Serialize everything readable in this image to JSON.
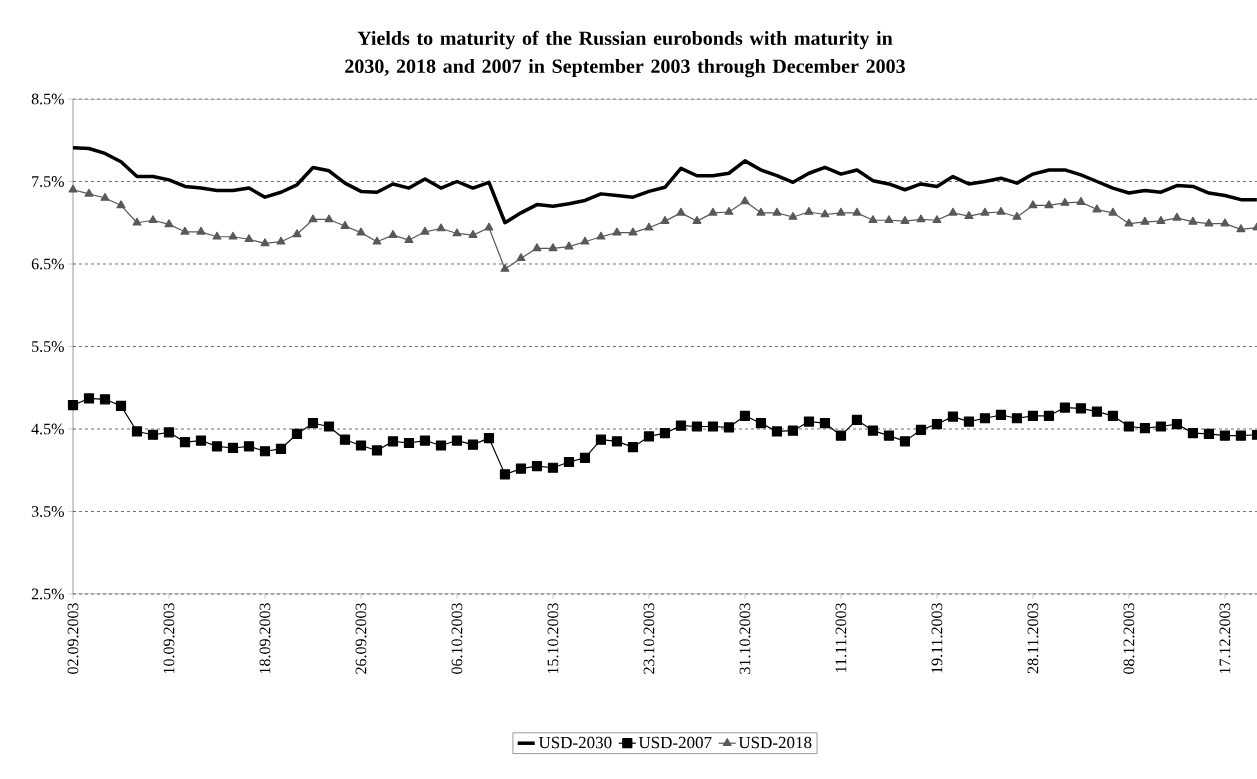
{
  "chart_data": {
    "type": "line",
    "title": "Yields to maturity of the Russian eurobonds with maturity in 2030, 2018 and 2007 in September 2003 through December 2003",
    "categories": [
      "02.09.2003",
      null,
      null,
      null,
      null,
      null,
      "10.09.2003",
      null,
      null,
      null,
      null,
      null,
      "18.09.2003",
      null,
      null,
      null,
      null,
      null,
      "26.09.2003",
      null,
      null,
      null,
      null,
      null,
      "06.10.2003",
      null,
      null,
      null,
      null,
      null,
      "15.10.2003",
      null,
      null,
      null,
      null,
      null,
      "23.10.2003",
      null,
      null,
      null,
      null,
      null,
      "31.10.2003",
      null,
      null,
      null,
      null,
      null,
      "11.11.2003",
      null,
      null,
      null,
      null,
      null,
      "19.11.2003",
      null,
      null,
      null,
      null,
      null,
      "28.11.2003",
      null,
      null,
      null,
      null,
      null,
      "08.12.2003",
      null,
      null,
      null,
      null,
      null,
      "17.12.2003",
      null,
      null
    ],
    "series": [
      {
        "name": "USD-2030",
        "color": "#000000",
        "marker": "none",
        "values": [
          7.91,
          7.9,
          7.84,
          7.74,
          7.56,
          7.56,
          7.52,
          7.44,
          7.42,
          7.39,
          7.39,
          7.42,
          7.31,
          7.37,
          7.46,
          7.67,
          7.63,
          7.48,
          7.38,
          7.37,
          7.47,
          7.42,
          7.53,
          7.42,
          7.5,
          7.42,
          7.49,
          7.0,
          7.12,
          7.22,
          7.2,
          7.23,
          7.27,
          7.35,
          7.33,
          7.31,
          7.38,
          7.43,
          7.66,
          7.57,
          7.57,
          7.6,
          7.75,
          7.64,
          7.57,
          7.49,
          7.6,
          7.67,
          7.59,
          7.64,
          7.51,
          7.47,
          7.4,
          7.47,
          7.44,
          7.56,
          7.47,
          7.5,
          7.54,
          7.48,
          7.59,
          7.64,
          7.64,
          7.58,
          7.5,
          7.42,
          7.36,
          7.39,
          7.37,
          7.45,
          7.44,
          7.36,
          7.33,
          7.28,
          7.28
        ]
      },
      {
        "name": "USD-2007",
        "color": "#000000",
        "marker": "square",
        "values": [
          4.79,
          4.87,
          4.86,
          4.78,
          4.47,
          4.43,
          4.46,
          4.34,
          4.36,
          4.29,
          4.27,
          4.29,
          4.23,
          4.26,
          4.44,
          4.57,
          4.53,
          4.37,
          4.3,
          4.24,
          4.35,
          4.33,
          4.36,
          4.3,
          4.36,
          4.31,
          4.39,
          3.95,
          4.02,
          4.05,
          4.03,
          4.1,
          4.15,
          4.37,
          4.35,
          4.28,
          4.41,
          4.45,
          4.54,
          4.53,
          4.53,
          4.52,
          4.66,
          4.57,
          4.47,
          4.48,
          4.59,
          4.57,
          4.42,
          4.61,
          4.48,
          4.42,
          4.35,
          4.49,
          4.56,
          4.65,
          4.59,
          4.63,
          4.67,
          4.63,
          4.66,
          4.66,
          4.76,
          4.75,
          4.71,
          4.66,
          4.53,
          4.51,
          4.53,
          4.56,
          4.45,
          4.44,
          4.42,
          4.42,
          4.43
        ]
      },
      {
        "name": "USD-2018",
        "color": "#595959",
        "marker": "triangle",
        "values": [
          7.4,
          7.35,
          7.3,
          7.21,
          7.0,
          7.03,
          6.98,
          6.89,
          6.89,
          6.83,
          6.83,
          6.8,
          6.75,
          6.77,
          6.86,
          7.04,
          7.04,
          6.96,
          6.88,
          6.77,
          6.85,
          6.79,
          6.89,
          6.93,
          6.87,
          6.85,
          6.94,
          6.44,
          6.57,
          6.69,
          6.69,
          6.71,
          6.77,
          6.83,
          6.88,
          6.88,
          6.94,
          7.02,
          7.12,
          7.02,
          7.12,
          7.13,
          7.26,
          7.12,
          7.12,
          7.07,
          7.13,
          7.1,
          7.12,
          7.12,
          7.03,
          7.03,
          7.02,
          7.04,
          7.03,
          7.12,
          7.08,
          7.12,
          7.13,
          7.07,
          7.21,
          7.21,
          7.24,
          7.25,
          7.16,
          7.12,
          6.99,
          7.01,
          7.02,
          7.06,
          7.01,
          6.99,
          6.99,
          6.92,
          6.94
        ]
      }
    ],
    "ylim": [
      2.5,
      8.5
    ],
    "yticks": [
      {
        "value": 2.5,
        "label": "2.5%"
      },
      {
        "value": 3.5,
        "label": "3.5%"
      },
      {
        "value": 4.5,
        "label": "4.5%"
      },
      {
        "value": 5.5,
        "label": "5.5%"
      },
      {
        "value": 6.5,
        "label": "6.5%"
      },
      {
        "value": 7.5,
        "label": "7.5%"
      },
      {
        "value": 8.5,
        "label": "8.5%"
      }
    ],
    "grid": "y",
    "legend": "bottom",
    "line_style": "solid"
  }
}
